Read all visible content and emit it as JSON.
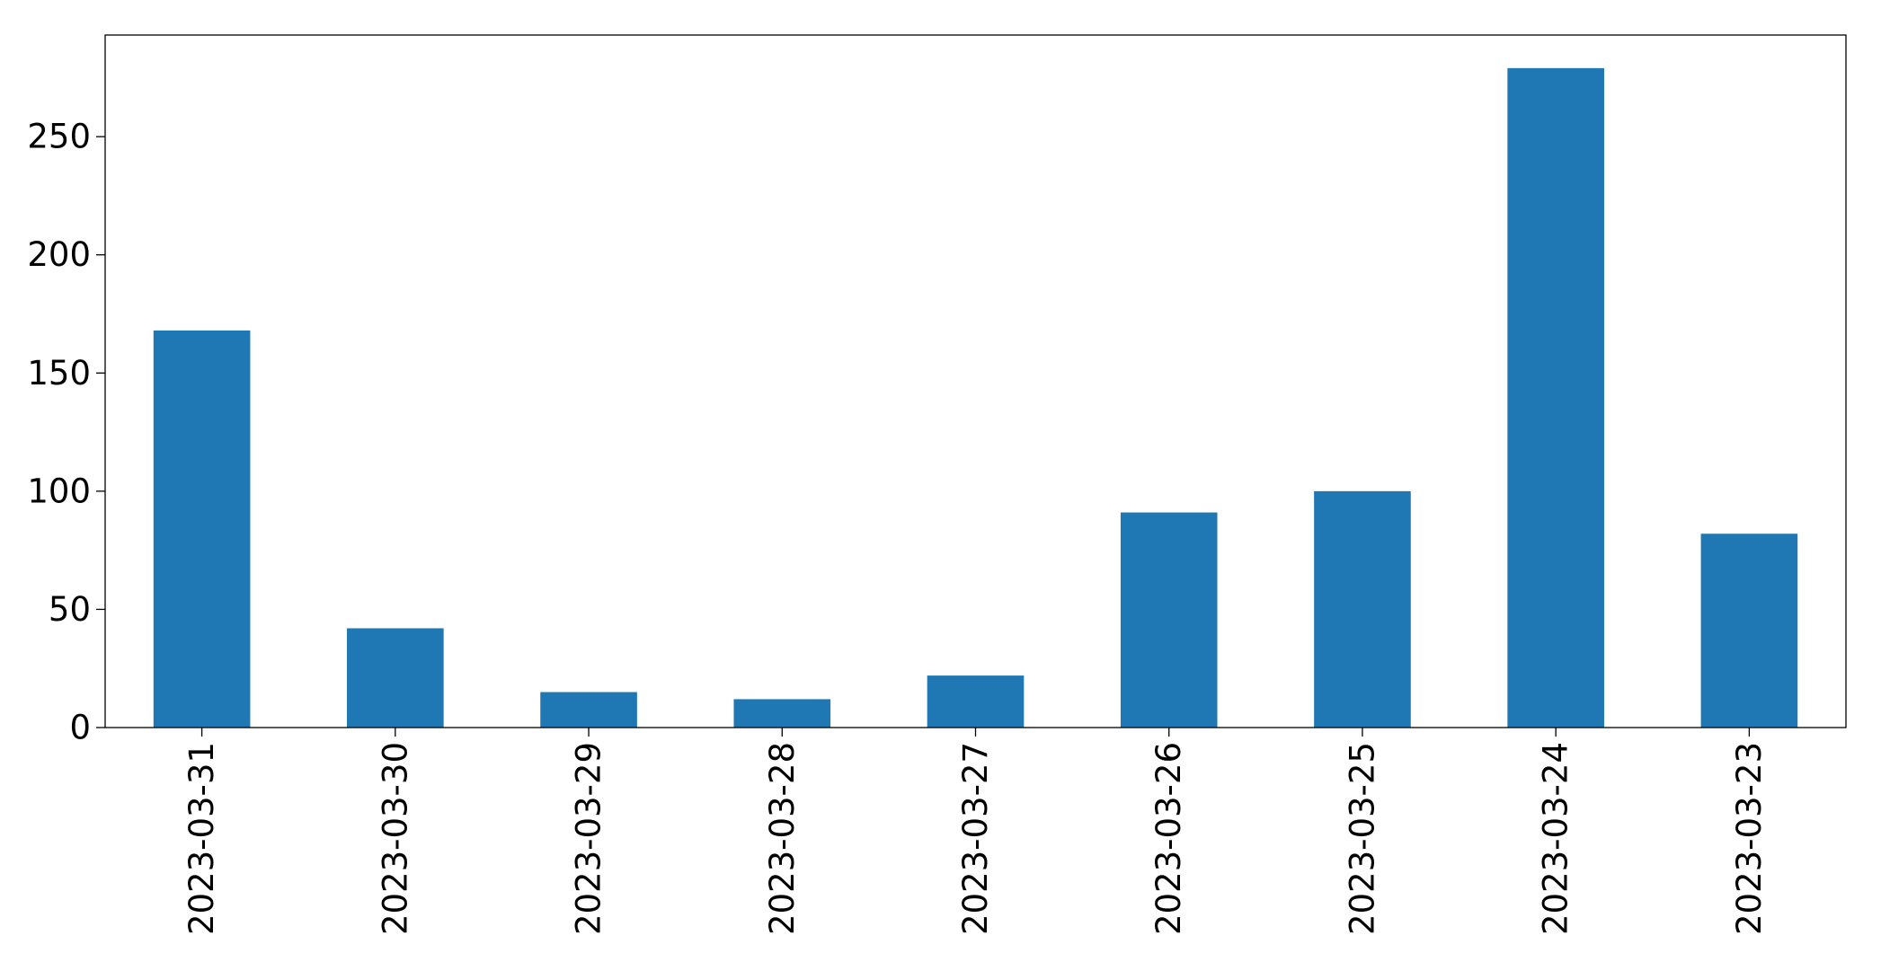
{
  "chart_data": {
    "type": "bar",
    "categories": [
      "2023-03-31",
      "2023-03-30",
      "2023-03-29",
      "2023-03-28",
      "2023-03-27",
      "2023-03-26",
      "2023-03-25",
      "2023-03-24",
      "2023-03-23"
    ],
    "values": [
      168,
      42,
      15,
      12,
      22,
      91,
      100,
      279,
      82
    ],
    "title": "",
    "xlabel": "",
    "ylabel": "",
    "ylim": [
      0,
      293
    ],
    "yticks": [
      0,
      50,
      100,
      150,
      200,
      250
    ],
    "bar_color": "#1f77b4",
    "grid": false,
    "legend": "none"
  }
}
